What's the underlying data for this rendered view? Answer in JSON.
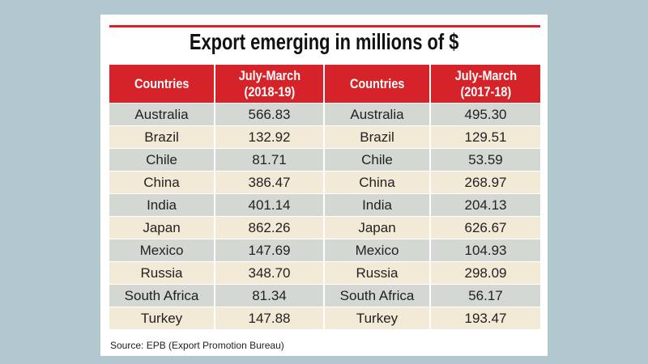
{
  "title": "Export emerging in millions of $",
  "table": {
    "header": [
      "Countries",
      "July-March\n(2018-19)",
      "Countries",
      "July-March\n(2017-18)"
    ],
    "rows": [
      [
        "Australia",
        "566.83",
        "Australia",
        "495.30"
      ],
      [
        "Brazil",
        "132.92",
        "Brazil",
        "129.51"
      ],
      [
        "Chile",
        "81.71",
        "Chile",
        "53.59"
      ],
      [
        "China",
        "386.47",
        "China",
        "268.97"
      ],
      [
        "India",
        "401.14",
        "India",
        "204.13"
      ],
      [
        "Japan",
        "862.26",
        "Japan",
        "626.67"
      ],
      [
        "Mexico",
        "147.69",
        "Mexico",
        "104.93"
      ],
      [
        "Russia",
        "348.70",
        "Russia",
        "298.09"
      ],
      [
        "South Africa",
        "81.34",
        "South Africa",
        "56.17"
      ],
      [
        "Turkey",
        "147.88",
        "Turkey",
        "193.47"
      ]
    ]
  },
  "source": "Source: EPB (Export Promotion Bureau)"
}
